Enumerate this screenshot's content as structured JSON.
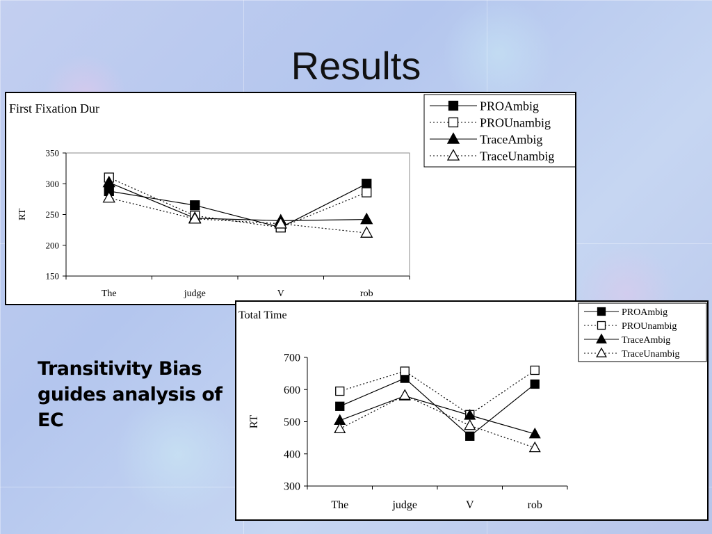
{
  "slide": {
    "title": "Results",
    "note": "Transitivity Bias guides analysis of EC"
  },
  "chart_data": [
    {
      "type": "line",
      "title": "First Fixation Dur",
      "ylabel": "RT",
      "xlabel": "",
      "categories": [
        "The",
        "judge",
        "V",
        "rob"
      ],
      "ylim": [
        150,
        350
      ],
      "yticks": [
        "150",
        "200",
        "250",
        "300",
        "350"
      ],
      "legend": "top-right",
      "series": [
        {
          "name": "PROAmbig",
          "values": [
            288,
            265,
            229,
            300
          ],
          "marker": "square-filled",
          "line": "solid"
        },
        {
          "name": "PROUnambig",
          "values": [
            310,
            248,
            229,
            286
          ],
          "marker": "square-open",
          "line": "dotted"
        },
        {
          "name": "TraceAmbig",
          "values": [
            302,
            244,
            240,
            242
          ],
          "marker": "triangle-filled",
          "line": "solid"
        },
        {
          "name": "TraceUnambig",
          "values": [
            277,
            243,
            235,
            220
          ],
          "marker": "triangle-open",
          "line": "dotted"
        }
      ]
    },
    {
      "type": "line",
      "title": "Total Time",
      "ylabel": "RT",
      "xlabel": "",
      "categories": [
        "The",
        "judge",
        "V",
        "rob"
      ],
      "ylim": [
        300,
        700
      ],
      "yticks": [
        "300",
        "400",
        "500",
        "600",
        "700"
      ],
      "legend": "top-right",
      "series": [
        {
          "name": "PROAmbig",
          "values": [
            548,
            635,
            455,
            617
          ],
          "marker": "square-filled",
          "line": "solid"
        },
        {
          "name": "PROUnambig",
          "values": [
            595,
            657,
            522,
            660
          ],
          "marker": "square-open",
          "line": "dotted"
        },
        {
          "name": "TraceAmbig",
          "values": [
            504,
            580,
            520,
            462
          ],
          "marker": "triangle-filled",
          "line": "solid"
        },
        {
          "name": "TraceUnambig",
          "values": [
            478,
            582,
            488,
            419
          ],
          "marker": "triangle-open",
          "line": "dotted"
        }
      ]
    }
  ]
}
